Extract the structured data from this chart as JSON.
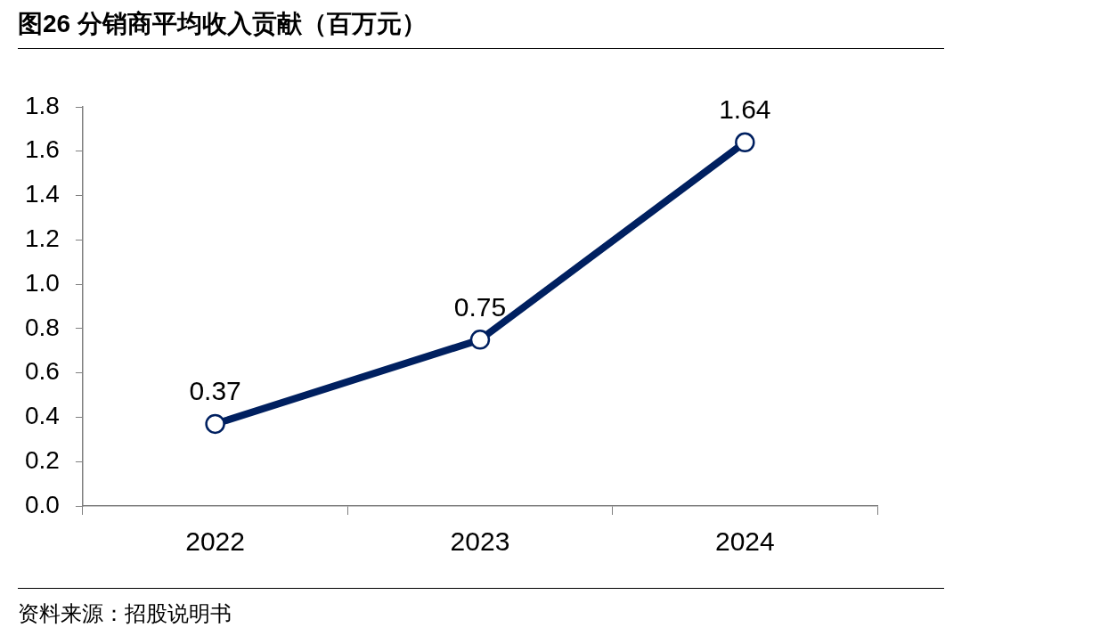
{
  "chart_data": {
    "type": "line",
    "title": "图26 分销商平均收入贡献（百万元）",
    "categories": [
      "2022",
      "2023",
      "2024"
    ],
    "series": [
      {
        "color": "#002060",
        "values": [
          0.37,
          0.75,
          1.64
        ]
      }
    ],
    "ylim": [
      0,
      1.8
    ],
    "yticks": [
      {
        "value": 0,
        "label": "0.0"
      },
      {
        "value": 0.2,
        "label": "0.2"
      },
      {
        "value": 0.4,
        "label": "0.4"
      },
      {
        "value": 0.6,
        "label": "0.6"
      },
      {
        "value": 0.8,
        "label": "0.8"
      },
      {
        "value": 1,
        "label": "1.0"
      },
      {
        "value": 1.2,
        "label": "1.2"
      },
      {
        "value": 1.4,
        "label": "1.4"
      },
      {
        "value": 1.6,
        "label": "1.6"
      },
      {
        "value": 1.8,
        "label": "1.8"
      }
    ],
    "grid": false,
    "legend": false,
    "marker": "circle",
    "line_style": "solid",
    "data_labels": true,
    "annotations": [
      "资料来源：招股说明书"
    ]
  }
}
